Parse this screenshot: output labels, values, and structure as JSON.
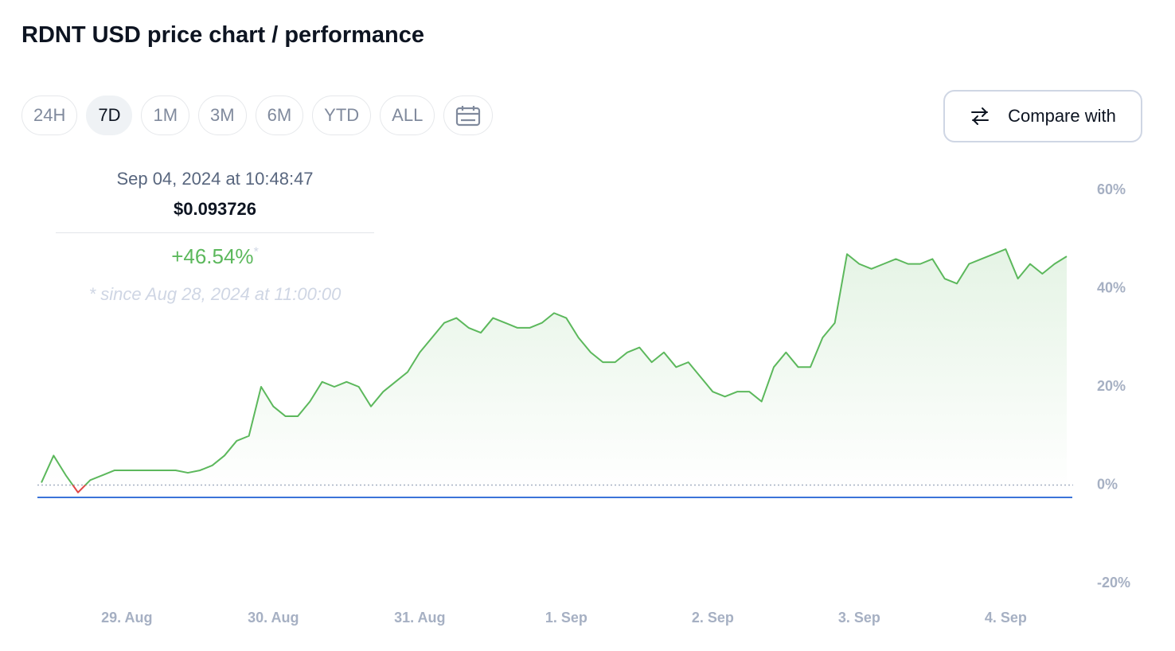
{
  "title": "RDNT USD price chart / performance",
  "ranges": [
    "24H",
    "7D",
    "1M",
    "3M",
    "6M",
    "YTD",
    "ALL"
  ],
  "compare_button": "Compare with",
  "tooltip": {
    "date": "Sep 04, 2024 at 10:48:47",
    "price": "$0.093726",
    "change": "+46.54%",
    "change_mark": "*",
    "note": "* since Aug 28, 2024 at 11:00:00"
  },
  "chart_data": {
    "type": "line",
    "color": "#5cb85c",
    "negative_color": "#e04848",
    "categories": [
      null,
      null,
      null,
      null,
      null,
      null,
      null,
      "29. Aug",
      null,
      null,
      null,
      null,
      null,
      null,
      null,
      null,
      null,
      null,
      null,
      "30. Aug",
      null,
      null,
      null,
      null,
      null,
      null,
      null,
      null,
      null,
      null,
      null,
      "31. Aug",
      null,
      null,
      null,
      null,
      null,
      null,
      null,
      null,
      null,
      null,
      null,
      "1. Sep",
      null,
      null,
      null,
      null,
      null,
      null,
      null,
      null,
      null,
      null,
      null,
      "2. Sep",
      null,
      null,
      null,
      null,
      null,
      null,
      null,
      null,
      null,
      null,
      null,
      "3. Sep",
      null,
      null,
      null,
      null,
      null,
      null,
      null,
      null,
      null,
      null,
      null,
      "4. Sep",
      null,
      null,
      null,
      null,
      null
    ],
    "values": [
      0.5,
      6,
      2,
      -1.5,
      1,
      2,
      3,
      3,
      3,
      3,
      3,
      3,
      2.5,
      3,
      4,
      6,
      9,
      10,
      20,
      16,
      14,
      14,
      17,
      21,
      20,
      21,
      20,
      16,
      19,
      21,
      23,
      27,
      30,
      33,
      34,
      32,
      31,
      34,
      33,
      32,
      32,
      33,
      35,
      34,
      30,
      27,
      25,
      25,
      27,
      28,
      25,
      27,
      24,
      25,
      22,
      19,
      18,
      19,
      19,
      17,
      24,
      27,
      24,
      24,
      30,
      33,
      47,
      45,
      44,
      45,
      46,
      45,
      45,
      46,
      42,
      41,
      45,
      46,
      47,
      48,
      42,
      45,
      43,
      45,
      46.54
    ],
    "ylim": [
      -20,
      60
    ],
    "yticks": [
      {
        "value": -20,
        "label": "-20%"
      },
      {
        "value": 0,
        "label": "0%"
      },
      {
        "value": 20,
        "label": "20%"
      },
      {
        "value": 40,
        "label": "40%"
      },
      {
        "value": 60,
        "label": "60%"
      }
    ]
  }
}
